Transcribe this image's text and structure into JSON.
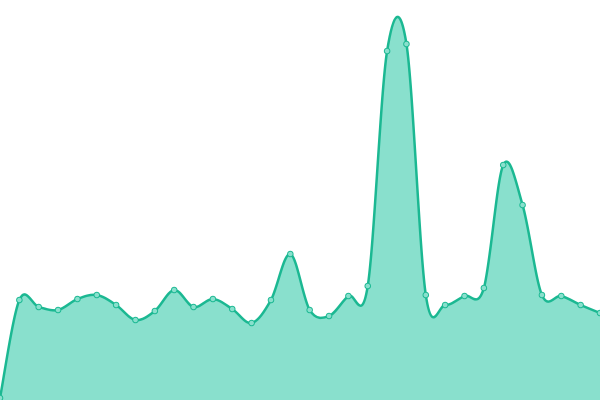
{
  "chart_data": {
    "type": "area",
    "x": [
      0,
      1,
      2,
      3,
      4,
      5,
      6,
      7,
      8,
      9,
      10,
      11,
      12,
      13,
      14,
      15,
      16,
      17,
      18,
      19,
      20,
      21,
      22,
      23,
      24,
      25,
      26,
      27,
      28,
      29,
      30,
      31
    ],
    "series": [
      {
        "color": "#1bb892",
        "fill": "#89e0cd",
        "values": [
          2,
          100,
          93,
          90,
          101,
          105,
          95,
          80,
          89,
          110,
          93,
          101,
          91,
          77,
          100,
          146,
          90,
          84,
          104,
          114,
          349,
          356,
          105,
          95,
          104,
          112,
          235,
          195,
          105,
          104,
          95,
          87
        ]
      }
    ],
    "xlim": [
      0,
      31
    ],
    "ylim": [
      0,
      400
    ],
    "markers": true
  }
}
